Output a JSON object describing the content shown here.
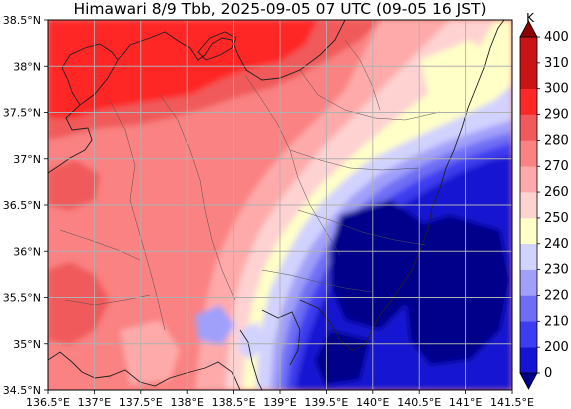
{
  "title": "Himawari 8/9 Tbb, 2025-09-05 07 UTC (09-05 16 JST)",
  "colorbar": {
    "unit": "K",
    "levels": [
      0,
      200,
      210,
      220,
      230,
      240,
      250,
      260,
      270,
      280,
      290,
      300,
      310,
      400
    ],
    "colors": [
      "#00008b",
      "#1414d2",
      "#3c3cf0",
      "#6e6ef5",
      "#a0a0fa",
      "#d2d2ff",
      "#ffffc8",
      "#ffd2d2",
      "#ffaaaa",
      "#fa8282",
      "#f05a5a",
      "#ff2828",
      "#c81414",
      "#8b0000"
    ],
    "extend": "both"
  },
  "axes": {
    "lon_range": [
      136.5,
      141.5
    ],
    "lat_range": [
      34.5,
      38.5
    ],
    "x_tick_labels": [
      "136.5°E",
      "137°E",
      "137.5°E",
      "138°E",
      "138.5°E",
      "139°E",
      "139.5°E",
      "140°E",
      "140.5°E",
      "141°E",
      "141.5°E"
    ],
    "y_tick_labels": [
      "38.5°N",
      "38°N",
      "37.5°N",
      "37°N",
      "36.5°N",
      "36°N",
      "35.5°N",
      "35°N",
      "34.5°N"
    ],
    "grid": true
  },
  "field": {
    "description_levels_K": "cold cloud mass over eastern Kanto (<210 K), warm clear land over Hokuriku/Chubu (280-300 K)"
  }
}
